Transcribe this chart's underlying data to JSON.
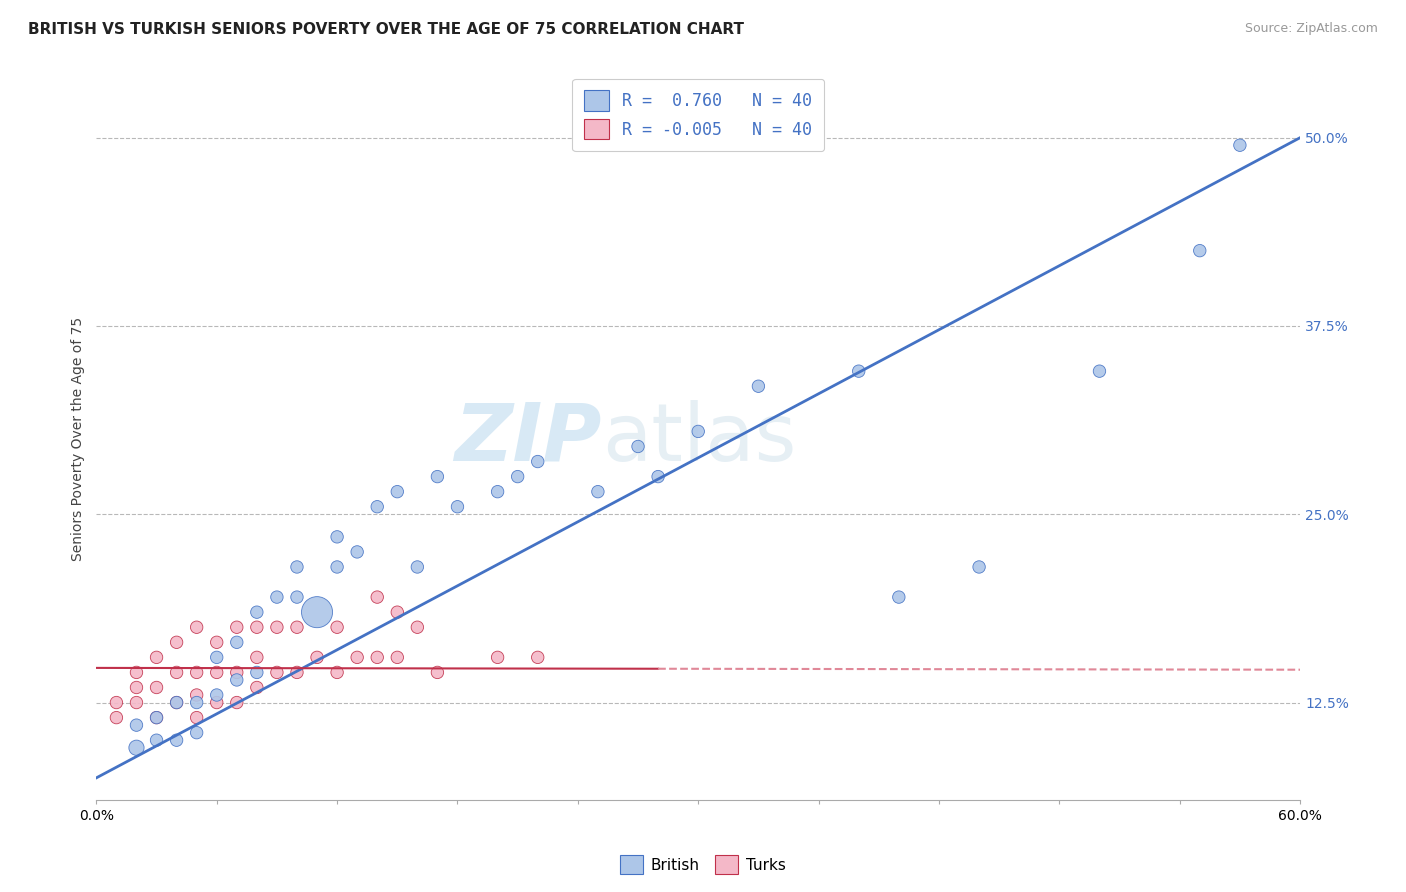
{
  "title": "BRITISH VS TURKISH SENIORS POVERTY OVER THE AGE OF 75 CORRELATION CHART",
  "source": "Source: ZipAtlas.com",
  "ylabel": "Seniors Poverty Over the Age of 75",
  "xlim": [
    0.0,
    0.6
  ],
  "ylim": [
    0.06,
    0.54
  ],
  "yticks": [
    0.125,
    0.25,
    0.375,
    0.5
  ],
  "ytick_labels": [
    "12.5%",
    "25.0%",
    "37.5%",
    "50.0%"
  ],
  "xticks": [
    0.0,
    0.06,
    0.12,
    0.18,
    0.24,
    0.3,
    0.36,
    0.42,
    0.48,
    0.54,
    0.6
  ],
  "xtick_labels": [
    "0.0%",
    "",
    "",
    "",
    "",
    "",
    "",
    "",
    "",
    "",
    "60.0%"
  ],
  "british_x": [
    0.02,
    0.02,
    0.03,
    0.03,
    0.04,
    0.04,
    0.05,
    0.05,
    0.06,
    0.06,
    0.07,
    0.07,
    0.08,
    0.08,
    0.09,
    0.1,
    0.1,
    0.11,
    0.12,
    0.12,
    0.13,
    0.14,
    0.15,
    0.16,
    0.17,
    0.18,
    0.2,
    0.21,
    0.22,
    0.25,
    0.27,
    0.28,
    0.3,
    0.33,
    0.38,
    0.4,
    0.44,
    0.5,
    0.55,
    0.57
  ],
  "british_y": [
    0.095,
    0.11,
    0.1,
    0.115,
    0.1,
    0.125,
    0.105,
    0.125,
    0.13,
    0.155,
    0.14,
    0.165,
    0.145,
    0.185,
    0.195,
    0.195,
    0.215,
    0.185,
    0.215,
    0.235,
    0.225,
    0.255,
    0.265,
    0.215,
    0.275,
    0.255,
    0.265,
    0.275,
    0.285,
    0.265,
    0.295,
    0.275,
    0.305,
    0.335,
    0.345,
    0.195,
    0.215,
    0.345,
    0.425,
    0.495
  ],
  "british_sizes": [
    120,
    80,
    80,
    80,
    80,
    80,
    80,
    80,
    80,
    80,
    80,
    80,
    80,
    80,
    80,
    80,
    80,
    500,
    80,
    80,
    80,
    80,
    80,
    80,
    80,
    80,
    80,
    80,
    80,
    80,
    80,
    80,
    80,
    80,
    80,
    80,
    80,
    80,
    80,
    80
  ],
  "turks_x": [
    0.01,
    0.01,
    0.02,
    0.02,
    0.02,
    0.03,
    0.03,
    0.03,
    0.04,
    0.04,
    0.04,
    0.05,
    0.05,
    0.05,
    0.05,
    0.06,
    0.06,
    0.06,
    0.07,
    0.07,
    0.07,
    0.08,
    0.08,
    0.08,
    0.09,
    0.09,
    0.1,
    0.1,
    0.11,
    0.12,
    0.12,
    0.13,
    0.14,
    0.14,
    0.15,
    0.15,
    0.16,
    0.17,
    0.2,
    0.22
  ],
  "turks_y": [
    0.115,
    0.125,
    0.125,
    0.135,
    0.145,
    0.115,
    0.135,
    0.155,
    0.125,
    0.145,
    0.165,
    0.115,
    0.13,
    0.145,
    0.175,
    0.125,
    0.145,
    0.165,
    0.125,
    0.145,
    0.175,
    0.135,
    0.155,
    0.175,
    0.145,
    0.175,
    0.145,
    0.175,
    0.155,
    0.145,
    0.175,
    0.155,
    0.155,
    0.195,
    0.155,
    0.185,
    0.175,
    0.145,
    0.155,
    0.155
  ],
  "turks_sizes": [
    80,
    80,
    80,
    80,
    80,
    80,
    80,
    80,
    80,
    80,
    80,
    80,
    80,
    80,
    80,
    80,
    80,
    80,
    80,
    80,
    80,
    80,
    80,
    80,
    80,
    80,
    80,
    80,
    80,
    80,
    80,
    80,
    80,
    80,
    80,
    80,
    80,
    80,
    80,
    80
  ],
  "british_color": "#adc6e8",
  "turks_color": "#f4b8c8",
  "british_line_color": "#4472c4",
  "turks_line_solid_color": "#c0304a",
  "turks_line_dash_color": "#e08898",
  "R_british": 0.76,
  "R_turks": -0.005,
  "N_british": 40,
  "N_turks": 40,
  "legend_R_color": "#4472c4",
  "background_color": "#ffffff",
  "grid_color": "#b8b8b8",
  "watermark_zip": "ZIP",
  "watermark_atlas": "atlas",
  "title_fontsize": 11,
  "axis_label_fontsize": 10,
  "tick_fontsize": 10
}
